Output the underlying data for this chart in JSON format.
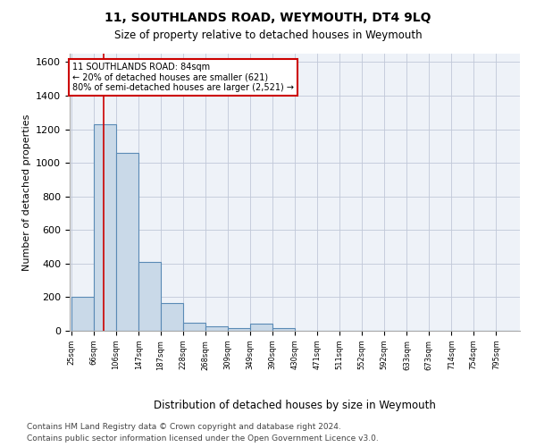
{
  "title": "11, SOUTHLANDS ROAD, WEYMOUTH, DT4 9LQ",
  "subtitle": "Size of property relative to detached houses in Weymouth",
  "xlabel": "Distribution of detached houses by size in Weymouth",
  "ylabel": "Number of detached properties",
  "bar_edges": [
    25,
    66,
    106,
    147,
    187,
    228,
    268,
    309,
    349,
    390,
    430,
    471,
    511,
    552,
    592,
    633,
    673,
    714,
    754,
    795,
    835
  ],
  "bar_heights": [
    200,
    1230,
    1060,
    410,
    165,
    50,
    25,
    15,
    40,
    15,
    0,
    0,
    0,
    0,
    0,
    0,
    0,
    0,
    0,
    0
  ],
  "bar_color": "#c9d9e8",
  "bar_edge_color": "#5a8ab5",
  "bar_edge_width": 0.8,
  "red_line_x": 84,
  "red_line_color": "#cc0000",
  "annotation_line1": "11 SOUTHLANDS ROAD: 84sqm",
  "annotation_line2": "← 20% of detached houses are smaller (621)",
  "annotation_line3": "80% of semi-detached houses are larger (2,521) →",
  "annotation_box_edgecolor": "#cc0000",
  "ylim": [
    0,
    1650
  ],
  "yticks": [
    0,
    200,
    400,
    600,
    800,
    1000,
    1200,
    1400,
    1600
  ],
  "footnote1": "Contains HM Land Registry data © Crown copyright and database right 2024.",
  "footnote2": "Contains public sector information licensed under the Open Government Licence v3.0.",
  "grid_color": "#c0c8d8",
  "bg_color": "#eef2f8"
}
